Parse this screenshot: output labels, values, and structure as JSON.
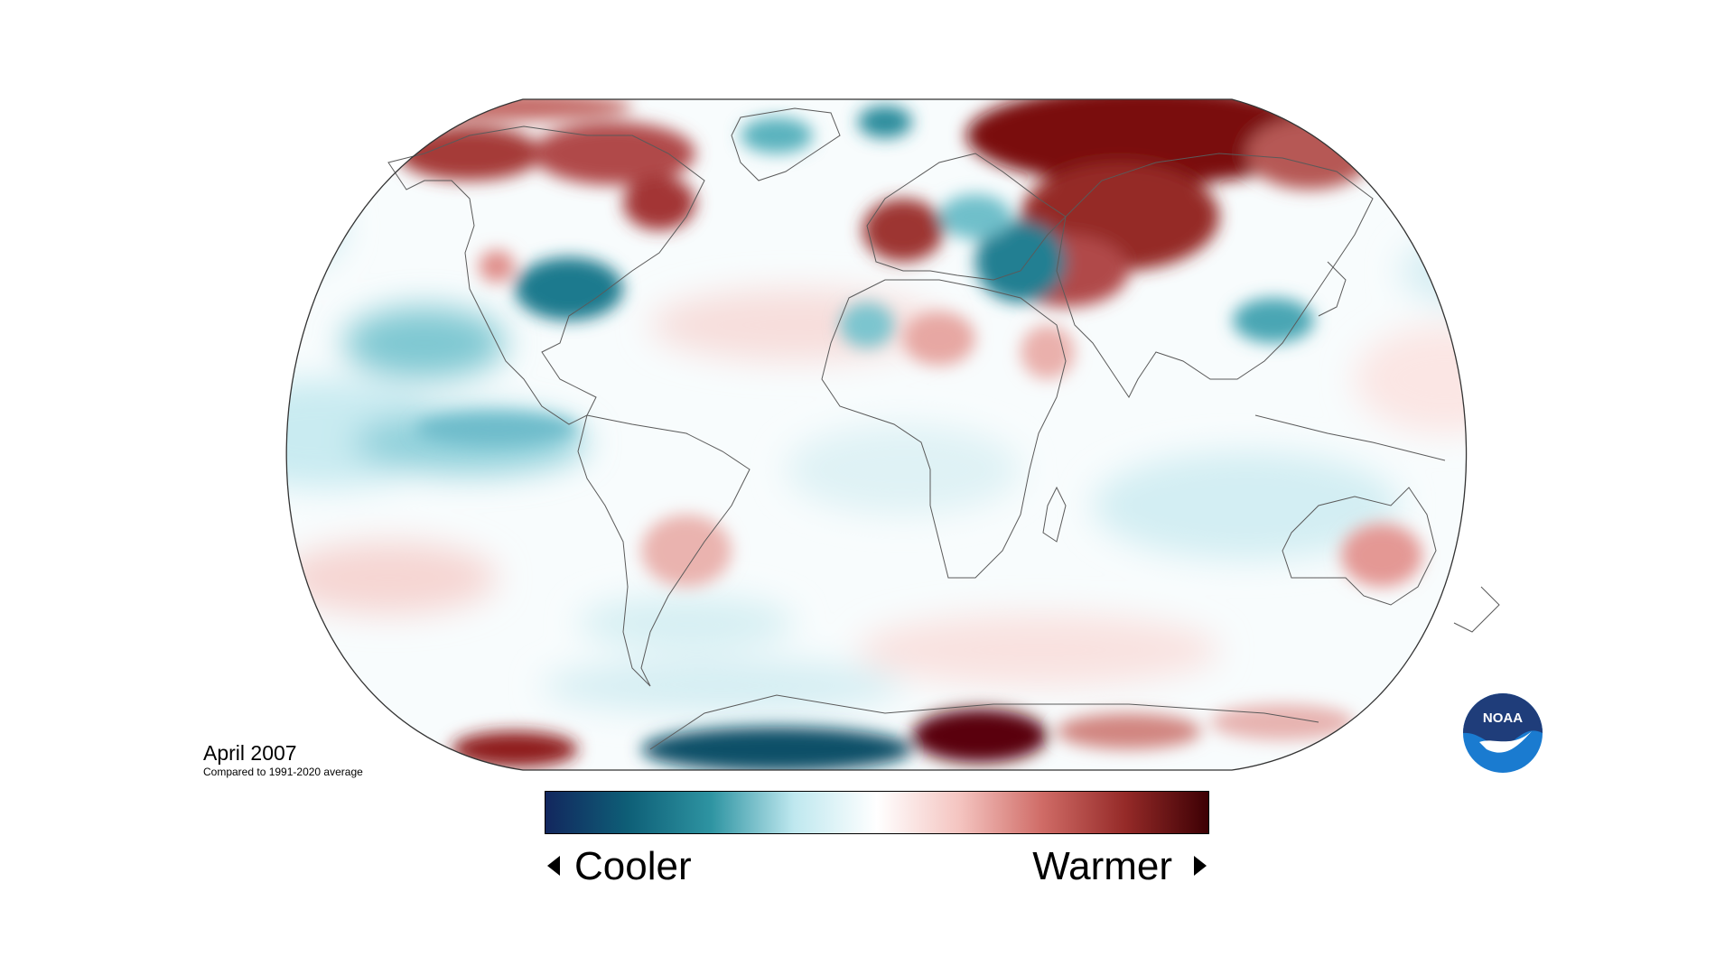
{
  "map": {
    "caption": {
      "date": "April 2007",
      "subtitle": "Compared to 1991-2020 average"
    },
    "legend": {
      "cool_label": "Cooler",
      "warm_label": "Warmer",
      "colors": [
        "#12275e",
        "#0e5f77",
        "#2e94a2",
        "#bfe8ef",
        "#ffffff",
        "#f4c4c0",
        "#cf6b66",
        "#952a28",
        "#3d0004"
      ]
    },
    "logo": {
      "text": "NOAA",
      "icon": "noaa-logo-icon",
      "colors": [
        "#1f3d7a",
        "#1a7bd0",
        "#ffffff"
      ]
    },
    "anomaly_palette": {
      "strong_warm": "#7a0e10",
      "warm": "#b04a48",
      "light_warm": "#f3c7c4",
      "light_cool": "#c4e9ef",
      "cool": "#4aa6b4",
      "strong_cool": "#0b5c73"
    }
  }
}
